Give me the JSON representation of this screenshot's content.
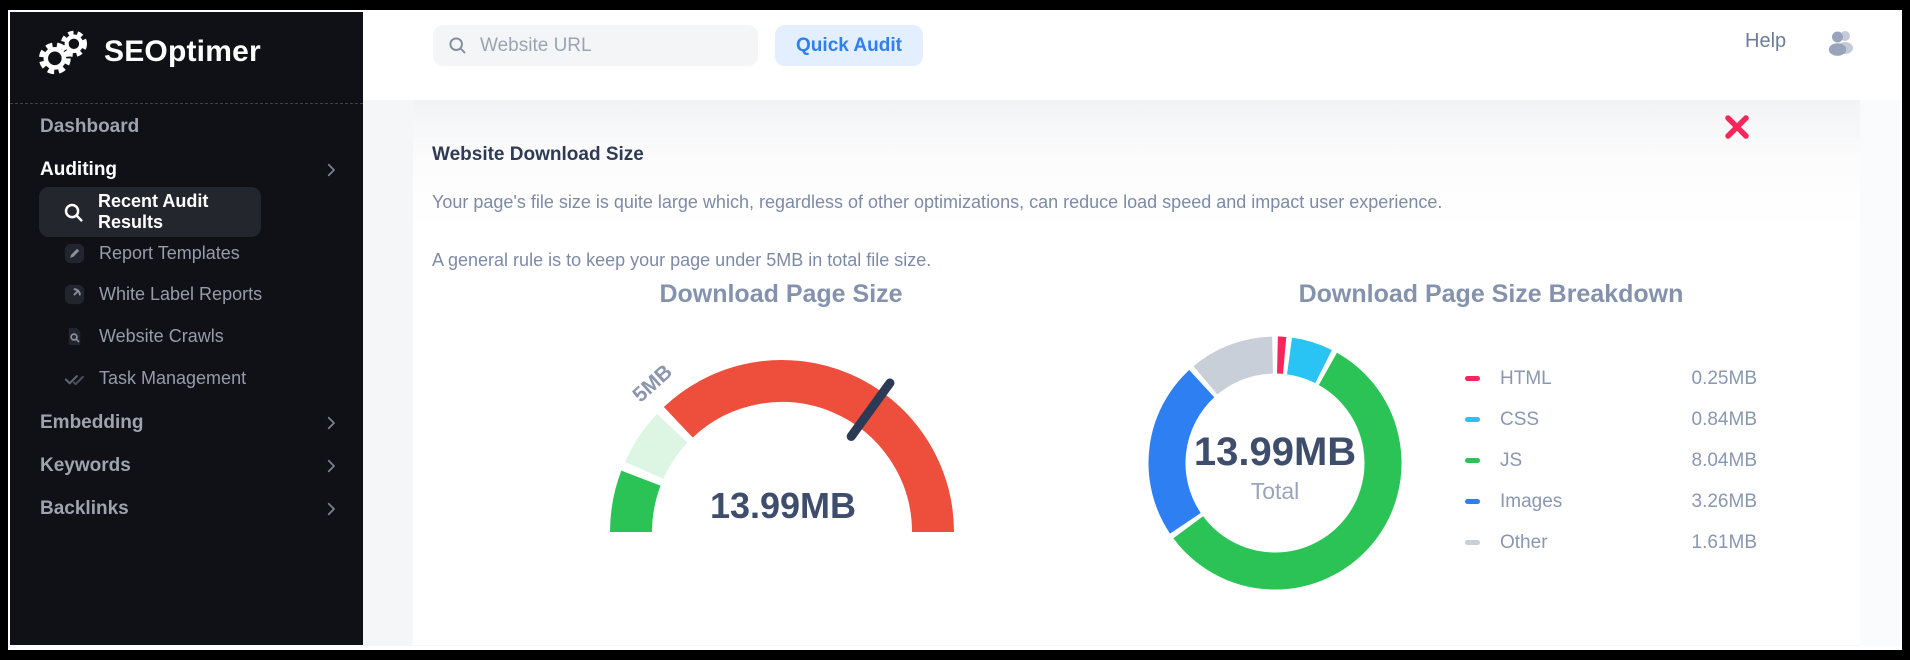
{
  "app": {
    "name": "SEOptimer"
  },
  "sidebar": {
    "logo_text": "SEOptimer",
    "items": [
      {
        "label": "Dashboard"
      },
      {
        "label": "Auditing"
      },
      {
        "label": "Recent Audit Results"
      },
      {
        "label": "Report Templates"
      },
      {
        "label": "White Label Reports"
      },
      {
        "label": "Website Crawls"
      },
      {
        "label": "Task Management"
      },
      {
        "label": "Embedding"
      },
      {
        "label": "Keywords"
      },
      {
        "label": "Backlinks"
      }
    ]
  },
  "topbar": {
    "search_placeholder": "Website URL",
    "search_value": "",
    "quick_audit_label": "Quick Audit",
    "help_label": "Help"
  },
  "panel": {
    "title": "Website Download Size",
    "description": "Your page's file size is quite large which, regardless of other optimizations, can reduce load speed and impact user experience.",
    "rule": "A general rule is to keep your page under 5MB in total file size."
  },
  "colors": {
    "accent_blue": "#2e7ff2",
    "danger_red": "#f5265c",
    "success_green": "#2bc356",
    "sidebar_bg": "#0f1116"
  },
  "chart_data": [
    {
      "type": "gauge",
      "title": "Download Page Size",
      "value": 13.99,
      "value_label": "13.99MB",
      "unit": "MB",
      "min": 0,
      "max": 20,
      "threshold_label": "5MB",
      "bands": [
        {
          "from": 0,
          "to": 2.5,
          "color": "#2bc356"
        },
        {
          "from": 2.5,
          "to": 5,
          "color": "#ddf6e4"
        },
        {
          "from": 5,
          "to": 20,
          "color": "#ee4f3d"
        }
      ],
      "needle_color": "#2c3a55"
    },
    {
      "type": "donut",
      "title": "Download Page Size Breakdown",
      "center_value": "13.99MB",
      "center_label": "Total",
      "unit": "MB",
      "legend_position": "right",
      "series": [
        {
          "name": "HTML",
          "value": 0.25,
          "value_label": "0.25MB",
          "color": "#f5265c"
        },
        {
          "name": "CSS",
          "value": 0.84,
          "value_label": "0.84MB",
          "color": "#29c3f4"
        },
        {
          "name": "JS",
          "value": 8.04,
          "value_label": "8.04MB",
          "color": "#2bc356"
        },
        {
          "name": "Images",
          "value": 3.26,
          "value_label": "3.26MB",
          "color": "#2e7ff1"
        },
        {
          "name": "Other",
          "value": 1.61,
          "value_label": "1.61MB",
          "color": "#c9cfd9"
        }
      ]
    }
  ]
}
